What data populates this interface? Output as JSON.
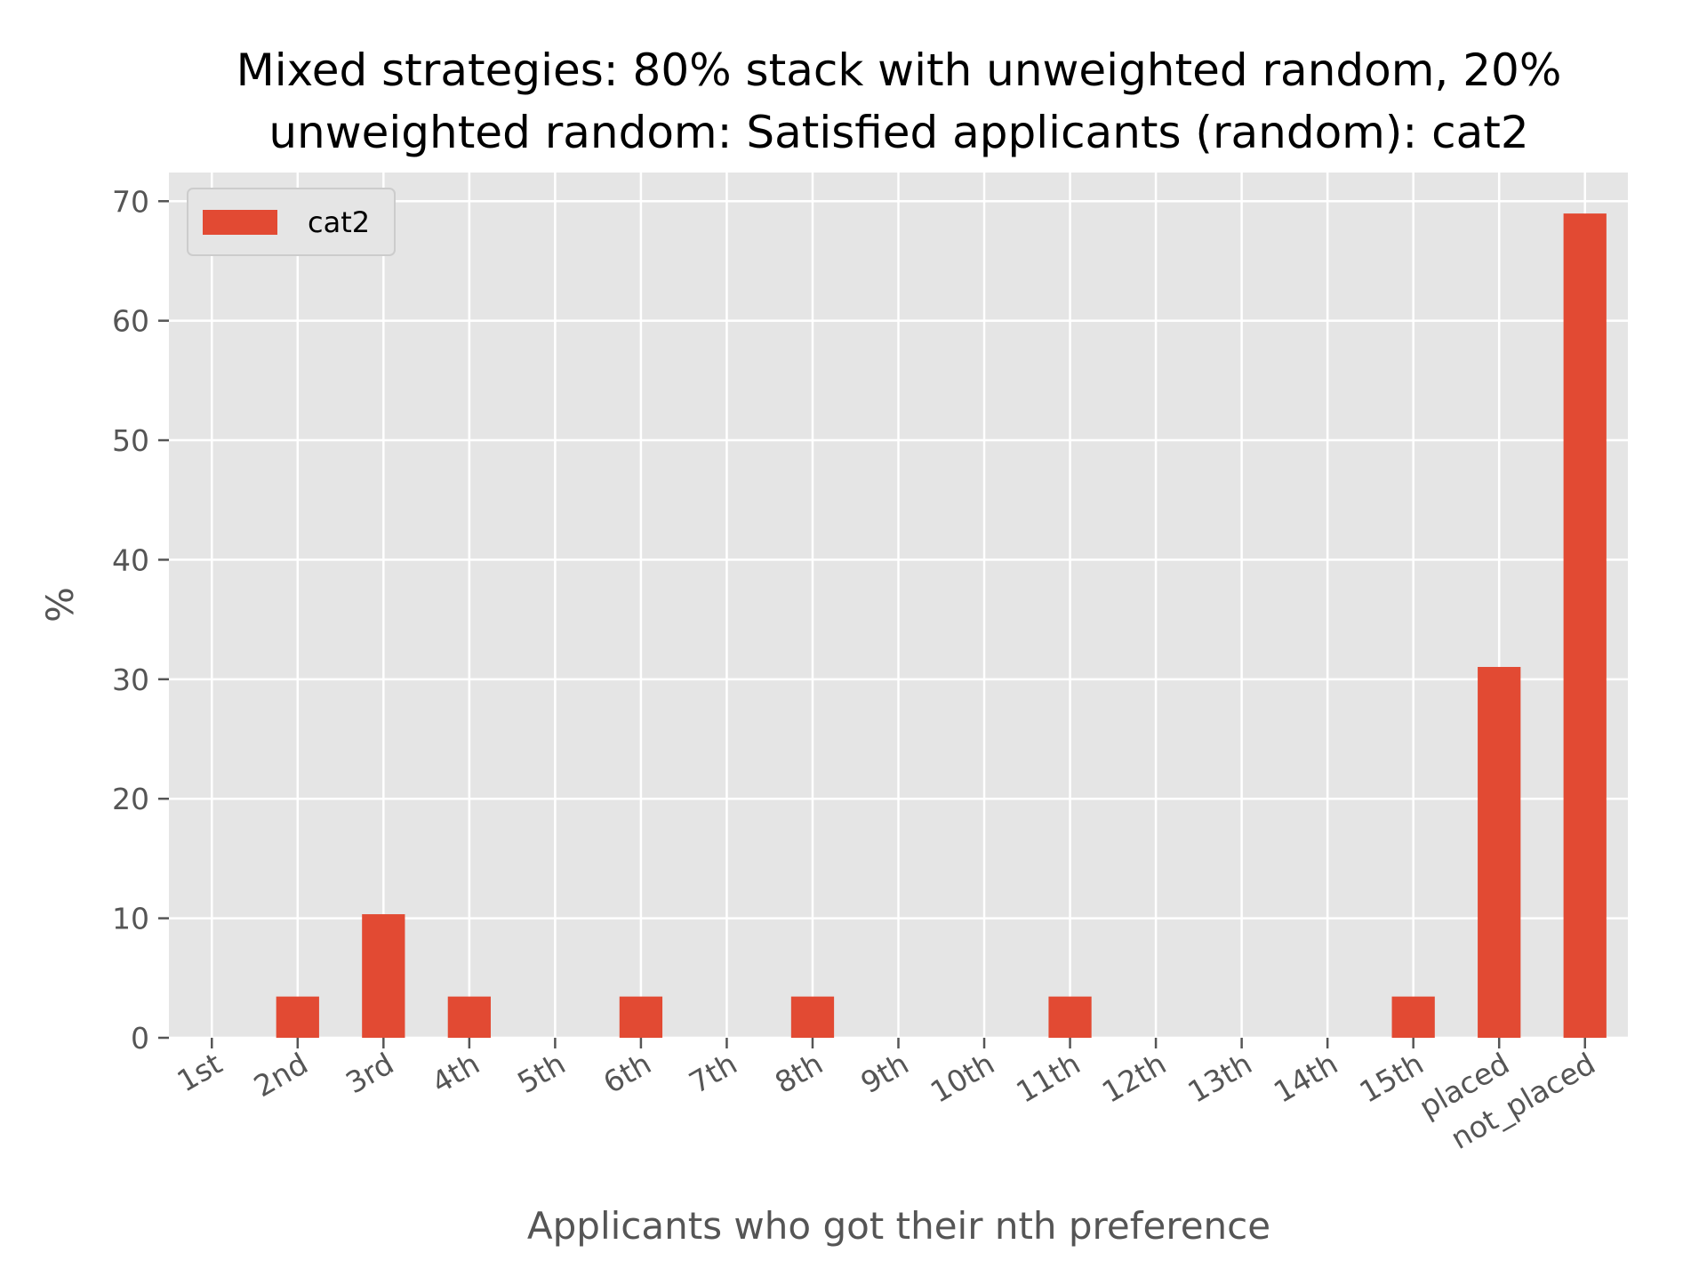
{
  "chart_data": {
    "type": "bar",
    "title": "Mixed strategies: 80% stack with unweighted random, 20%\nunweighted random: Satisfied applicants (random): cat2",
    "xlabel": "Applicants who got their nth preference",
    "ylabel": "%",
    "categories": [
      "1st",
      "2nd",
      "3rd",
      "4th",
      "5th",
      "6th",
      "7th",
      "8th",
      "9th",
      "10th",
      "11th",
      "12th",
      "13th",
      "14th",
      "15th",
      "placed",
      "not_placed"
    ],
    "series": [
      {
        "name": "cat2",
        "color": "#E24A33",
        "values": [
          0,
          3.45,
          10.34,
          3.45,
          0,
          3.45,
          0,
          3.45,
          0,
          0,
          3.45,
          0,
          0,
          0,
          3.45,
          31.03,
          68.97
        ]
      }
    ],
    "ylim": [
      0,
      72.4
    ],
    "yticks": [
      0,
      10,
      20,
      30,
      40,
      50,
      60,
      70
    ],
    "grid": true,
    "legend_position": "top-left",
    "background_color": "#E5E5E5",
    "grid_color": "#FFFFFF"
  }
}
